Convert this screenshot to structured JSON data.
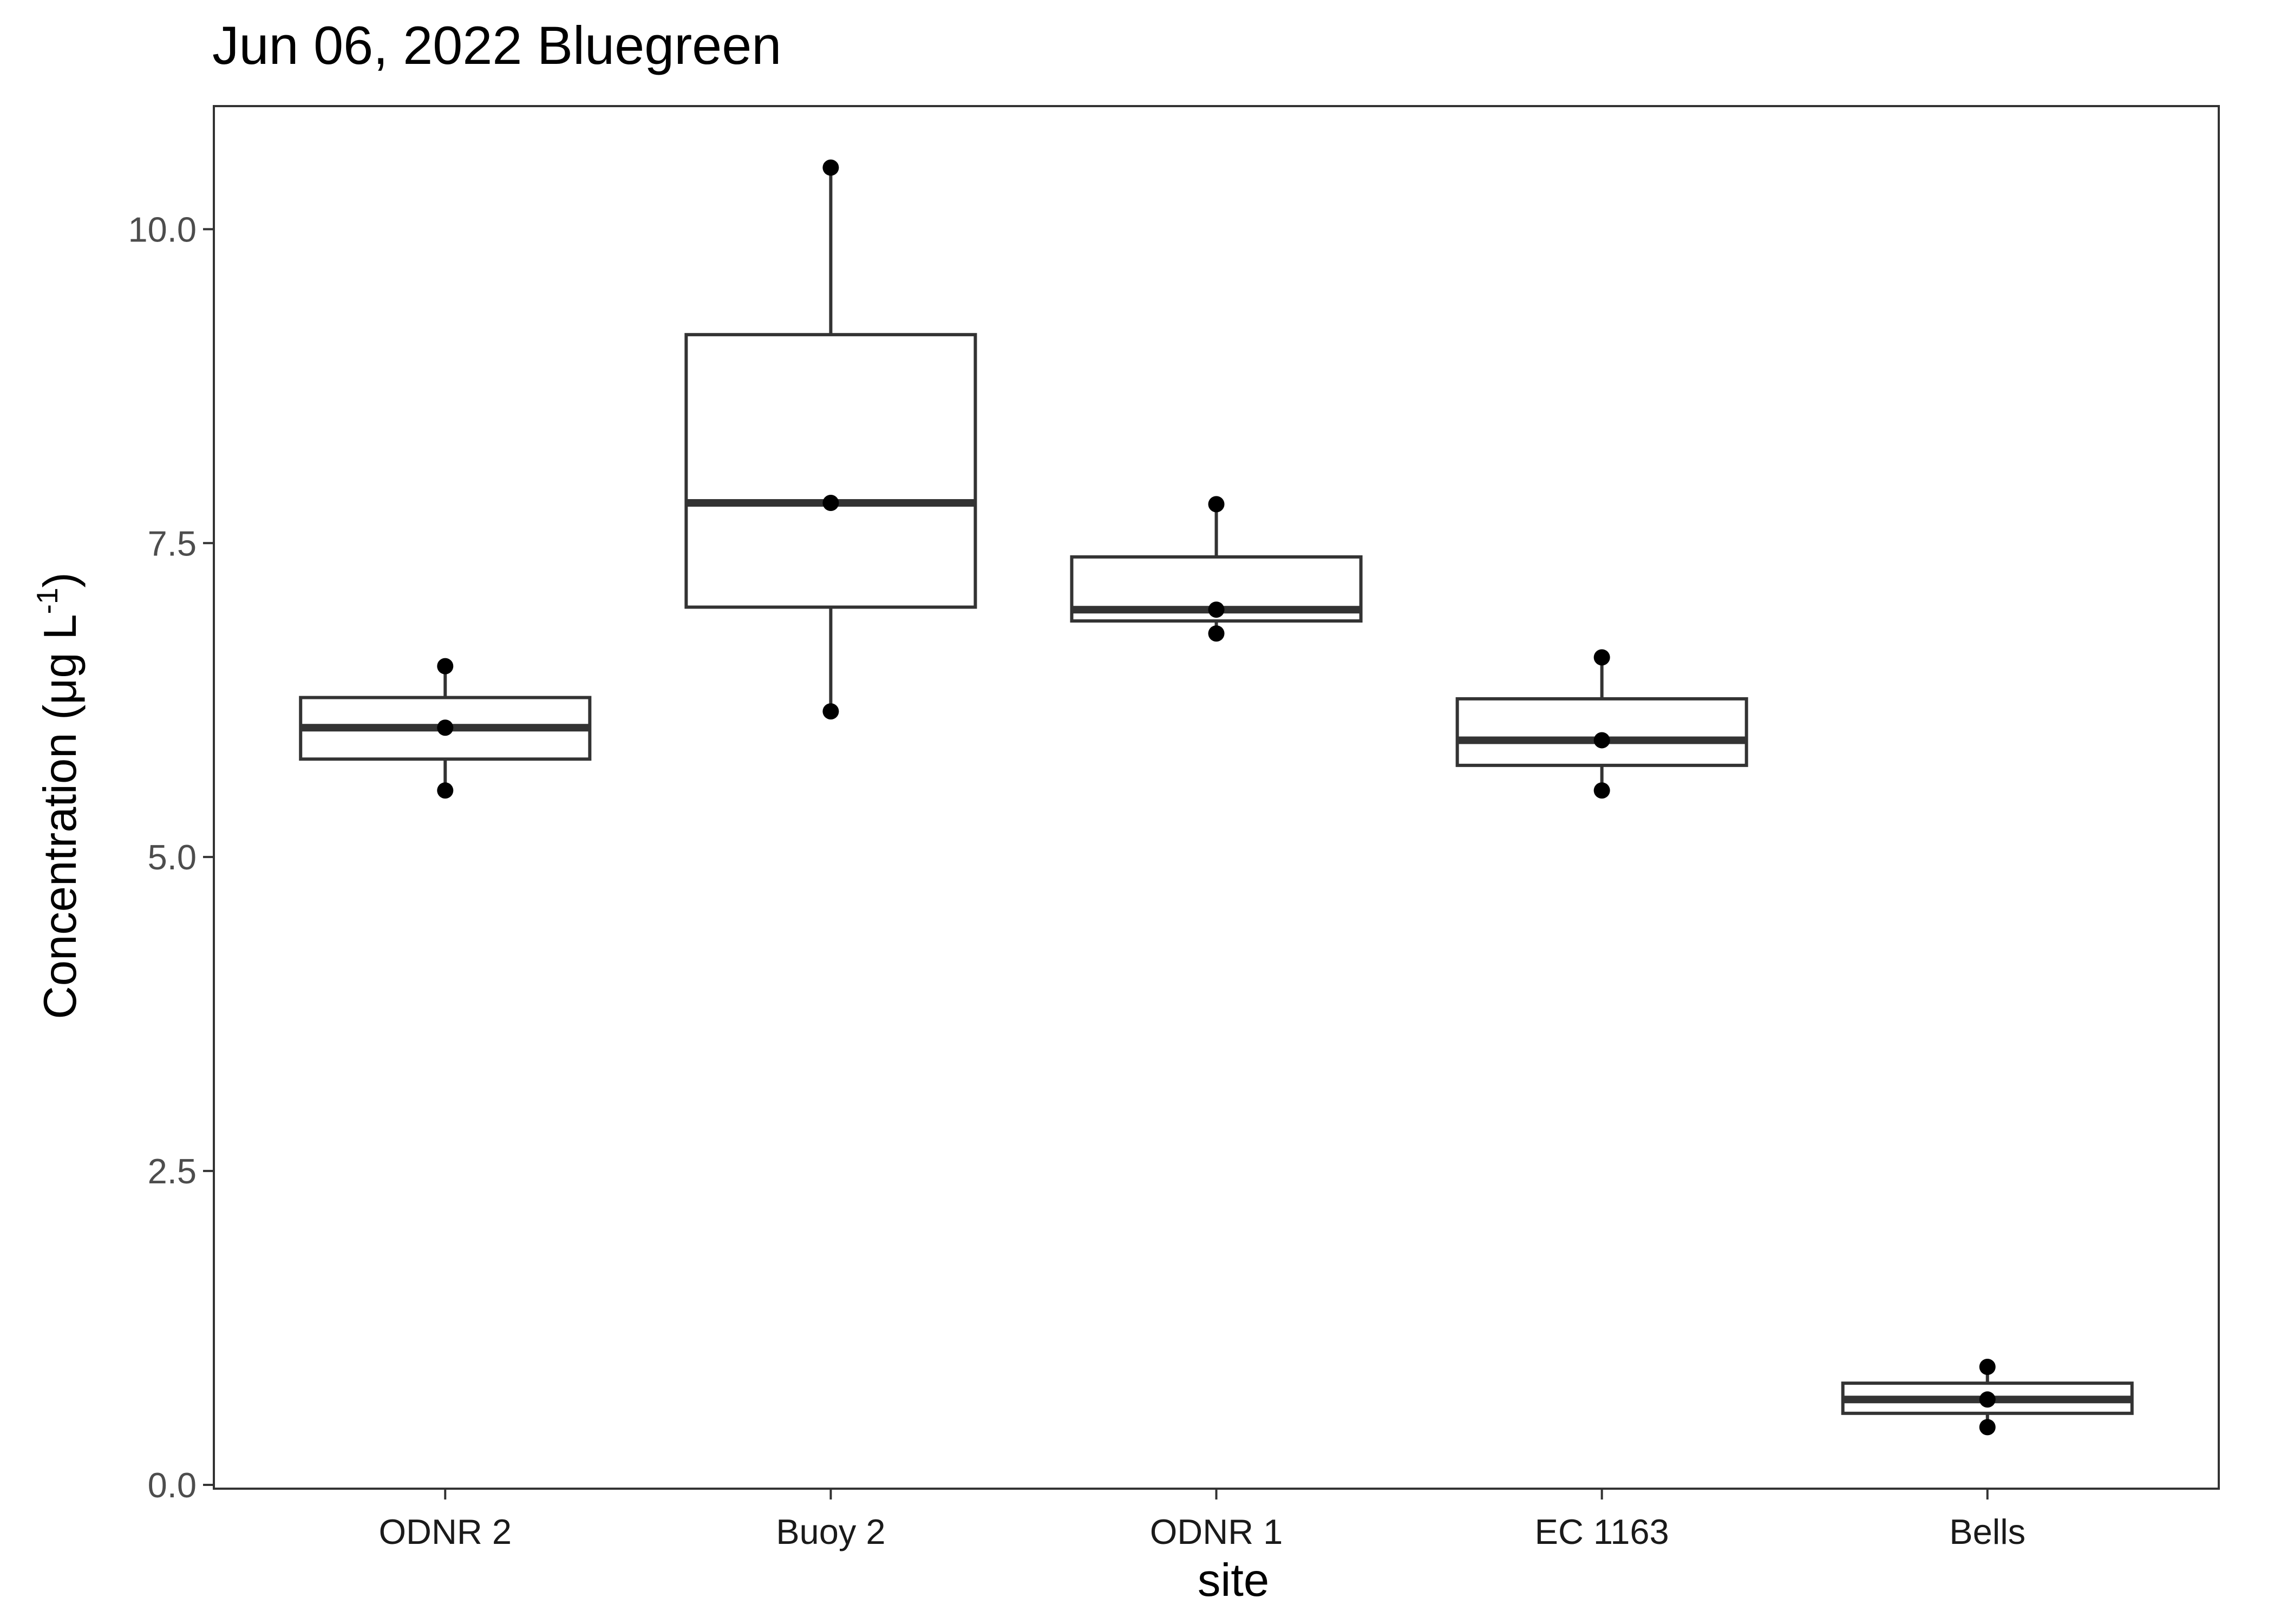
{
  "chart_data": {
    "type": "boxplot",
    "title": "Jun 06, 2022 Bluegreen",
    "xlabel": "site",
    "ylabel": "Concentration (μg L⁻¹)",
    "ylabel_parts": {
      "main": "Concentration (μg L",
      "superscript": "-1",
      "close": ")"
    },
    "ylim": [
      -0.03,
      10.98
    ],
    "yticks": [
      0.0,
      2.5,
      5.0,
      7.5,
      10.0
    ],
    "ytick_labels": [
      "0.0",
      "2.5",
      "5.0",
      "7.5",
      "10.0"
    ],
    "categories": [
      "ODNR 2",
      "Buoy 2",
      "ODNR 1",
      "EC 1163",
      "Bells"
    ],
    "boxes": [
      {
        "category": "ODNR 2",
        "min": 5.53,
        "q1": 5.78,
        "median": 6.03,
        "q3": 6.27,
        "max": 6.52
      },
      {
        "category": "Buoy 2",
        "min": 6.16,
        "q1": 6.99,
        "median": 7.82,
        "q3": 9.16,
        "max": 10.49
      },
      {
        "category": "ODNR 1",
        "min": 6.78,
        "q1": 6.88,
        "median": 6.97,
        "q3": 7.39,
        "max": 7.81
      },
      {
        "category": "EC 1163",
        "min": 5.53,
        "q1": 5.73,
        "median": 5.93,
        "q3": 6.26,
        "max": 6.59
      },
      {
        "category": "Bells",
        "min": 0.46,
        "q1": 0.57,
        "median": 0.68,
        "q3": 0.81,
        "max": 0.94
      }
    ],
    "points": [
      {
        "category": "ODNR 2",
        "values": [
          6.52,
          6.03,
          5.53
        ]
      },
      {
        "category": "Buoy 2",
        "values": [
          10.49,
          7.82,
          6.16
        ]
      },
      {
        "category": "ODNR 1",
        "values": [
          7.81,
          6.97,
          6.78
        ]
      },
      {
        "category": "EC 1163",
        "values": [
          6.59,
          5.93,
          5.53
        ]
      },
      {
        "category": "Bells",
        "values": [
          0.94,
          0.68,
          0.46
        ]
      }
    ],
    "grid": false,
    "colors": {
      "box_stroke": "#333333",
      "box_fill": "#ffffff",
      "point": "#000000"
    }
  }
}
